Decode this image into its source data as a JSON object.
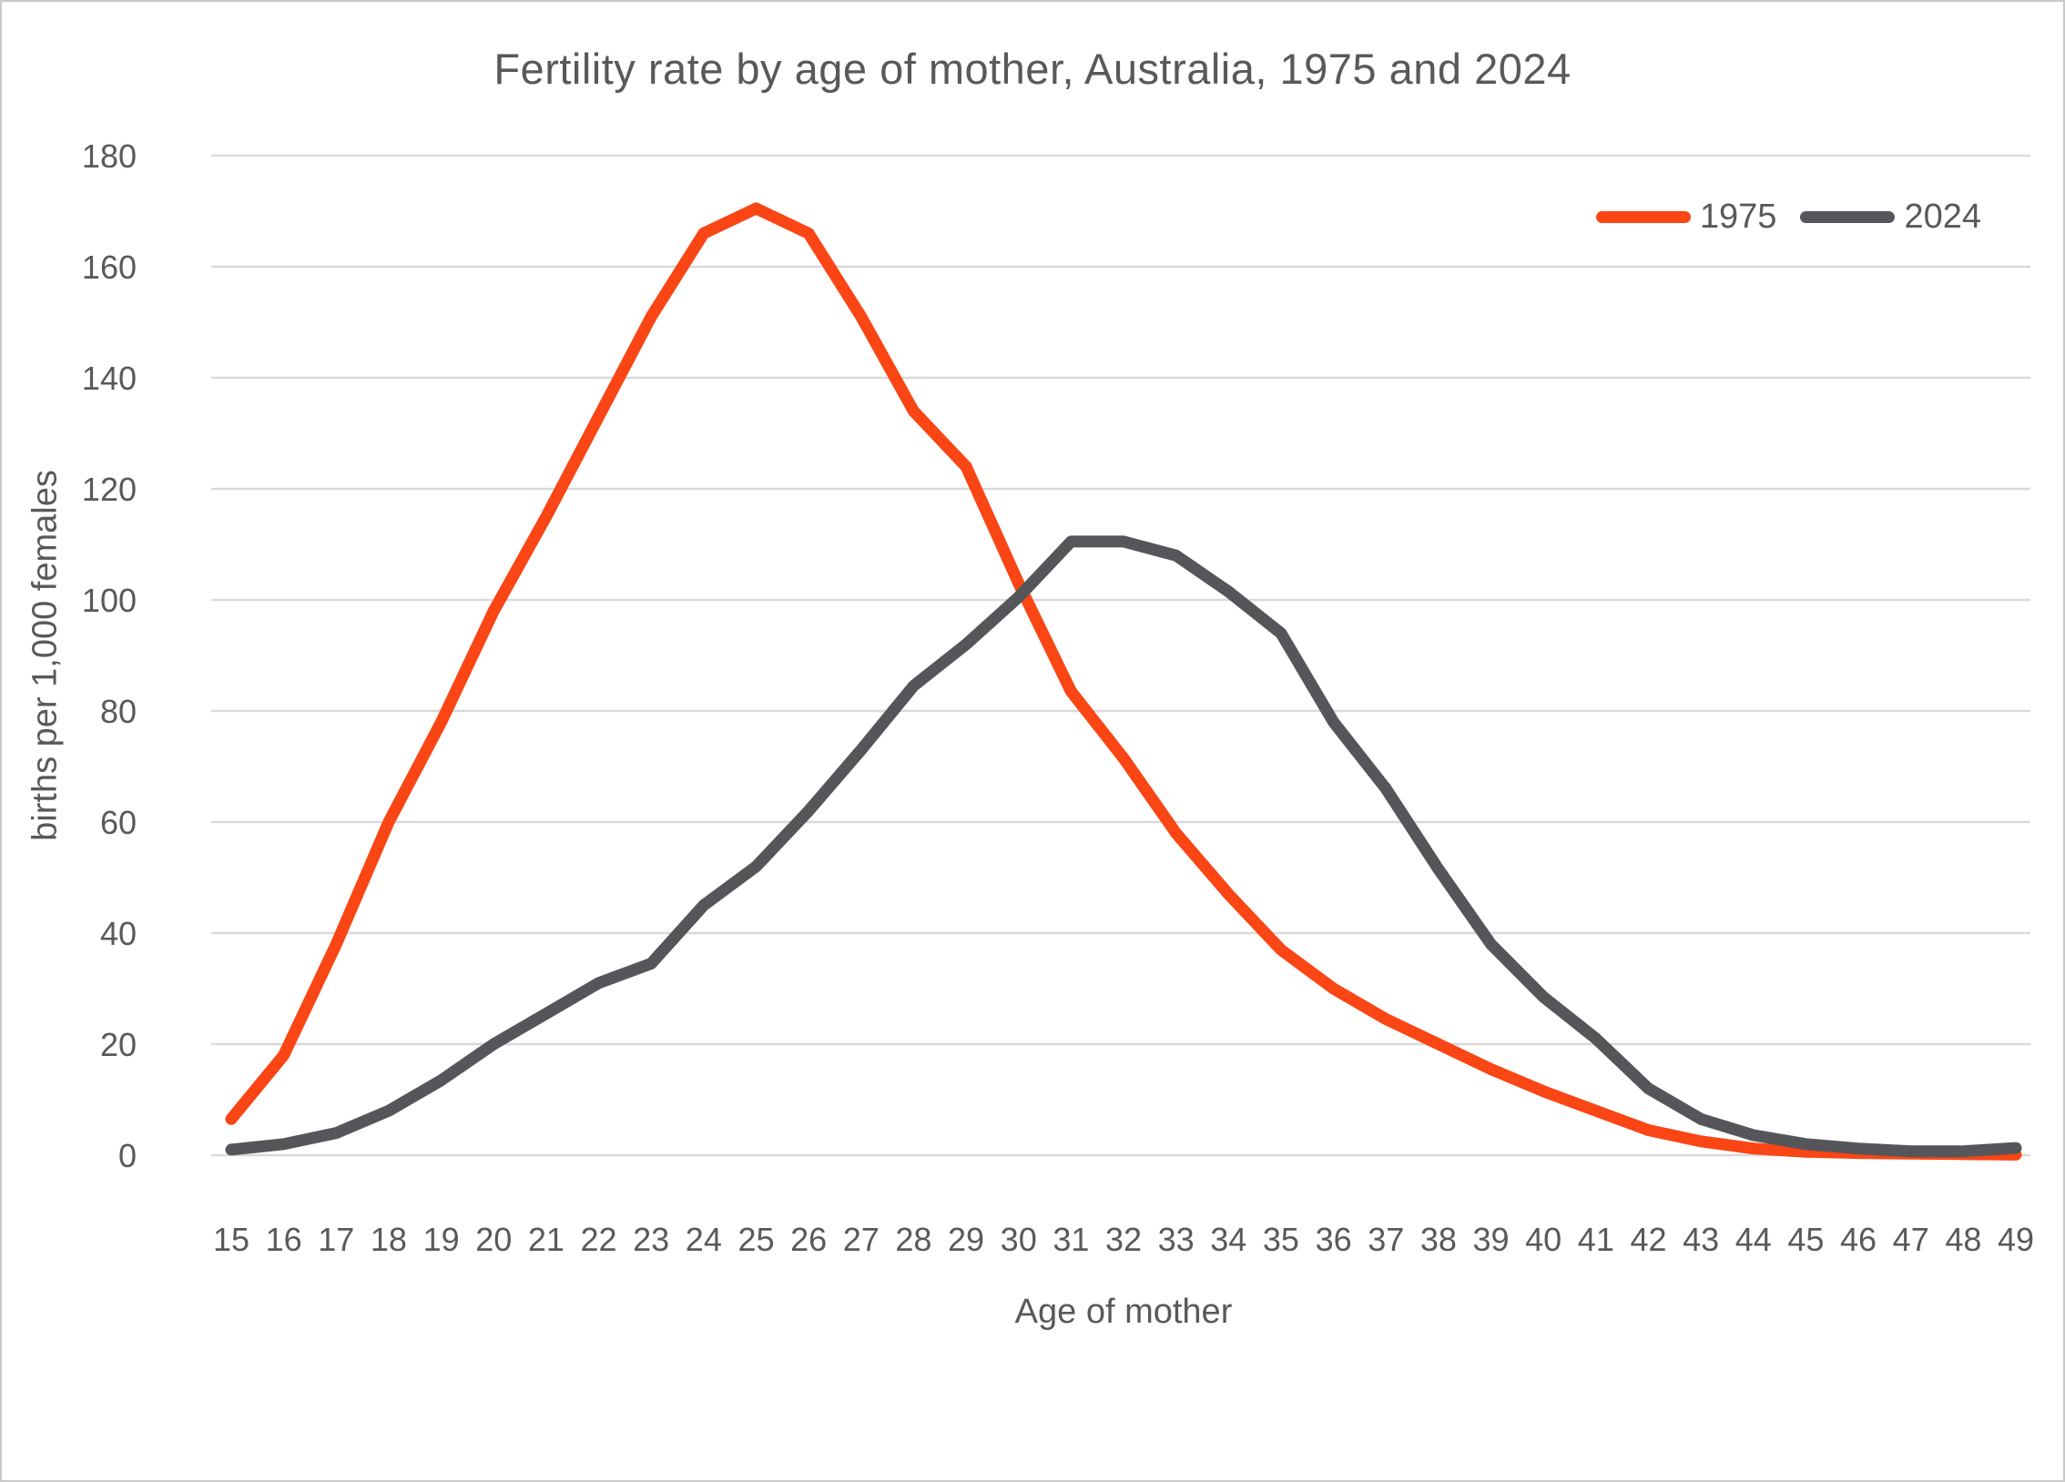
{
  "title": "Fertility rate by age of mother, Australia, 1975 and 2024",
  "colors": {
    "series_1975": "#fa4515",
    "series_2024": "#55565a",
    "gridline": "#d9d9d9",
    "text": "#595959",
    "background": "#ffffff"
  },
  "chart_data": {
    "type": "line",
    "title": "Fertility rate by age of mother, Australia, 1975 and 2024",
    "xlabel": "Age of mother",
    "ylabel": "births per 1,000 females",
    "x": [
      15,
      16,
      17,
      18,
      19,
      20,
      21,
      22,
      23,
      24,
      25,
      26,
      27,
      28,
      29,
      30,
      31,
      32,
      33,
      34,
      35,
      36,
      37,
      38,
      39,
      40,
      41,
      42,
      43,
      44,
      45,
      46,
      47,
      48,
      49
    ],
    "series": [
      {
        "name": "1975",
        "color": "#fa4515",
        "values": [
          6.5,
          18,
          38,
          60,
          78,
          98,
          115,
          133,
          151,
          166,
          170.5,
          166,
          151,
          134,
          124,
          103,
          83.5,
          71.5,
          58,
          47,
          37,
          30,
          24.5,
          20,
          15.5,
          11.5,
          8,
          4.5,
          2.5,
          1.2,
          0.6,
          0.4,
          0.3,
          0.2,
          0.1
        ]
      },
      {
        "name": "2024",
        "color": "#55565a",
        "values": [
          1,
          2,
          4,
          8,
          13.5,
          20,
          25.5,
          31,
          34.5,
          45,
          52,
          62,
          73,
          84.5,
          92,
          100.5,
          110.5,
          110.5,
          108,
          101.5,
          94,
          78,
          66,
          51.5,
          38,
          28.5,
          21,
          12,
          6.5,
          3.6,
          2,
          1.2,
          0.7,
          0.7,
          1.3
        ]
      }
    ],
    "ylim": [
      0,
      180
    ],
    "ytick_step": 20,
    "xticks": [
      15,
      16,
      17,
      18,
      19,
      20,
      21,
      22,
      23,
      24,
      25,
      26,
      27,
      28,
      29,
      30,
      31,
      32,
      33,
      34,
      35,
      36,
      37,
      38,
      39,
      40,
      41,
      42,
      43,
      44,
      45,
      46,
      47,
      48,
      49
    ],
    "grid": "horizontal-only",
    "legend_position": "top-right",
    "line_width": 13
  }
}
